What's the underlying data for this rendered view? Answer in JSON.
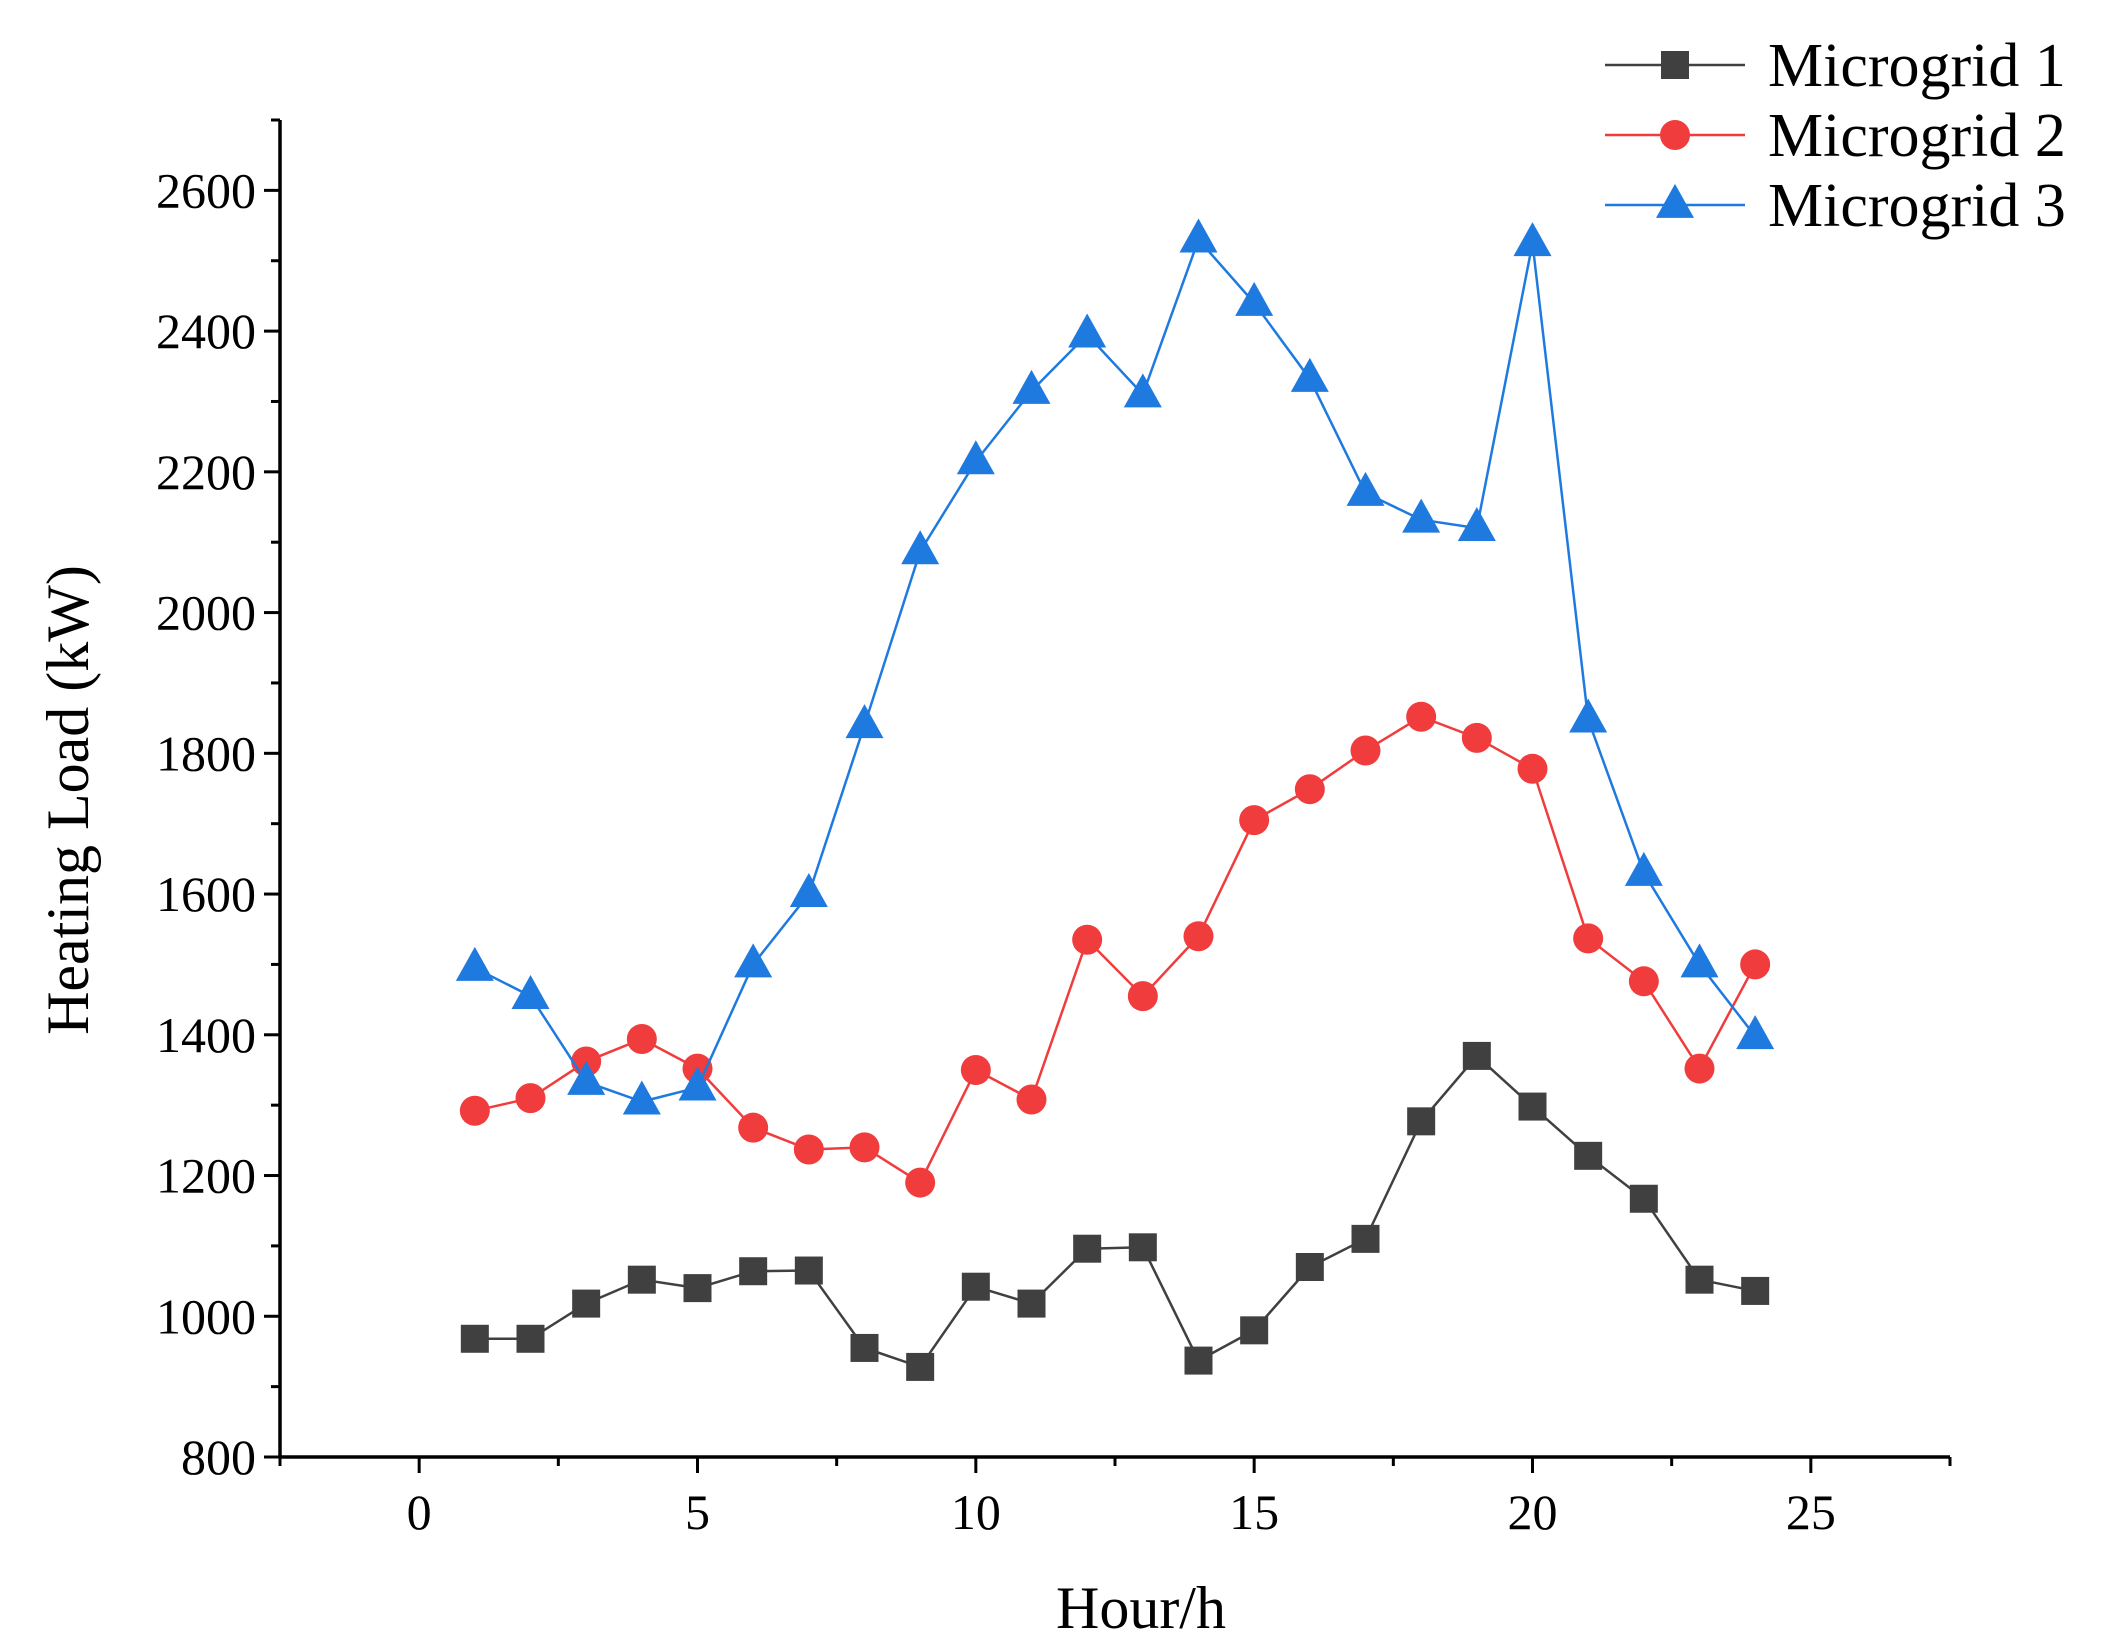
{
  "chart_data": {
    "type": "line",
    "title": "",
    "xlabel": "Hour/h",
    "ylabel": "Heating Load (kW)",
    "xlim": [
      -2.5,
      27.5
    ],
    "ylim": [
      800,
      2700
    ],
    "xticks": [
      0,
      5,
      10,
      15,
      20,
      25
    ],
    "yticks": [
      800,
      1000,
      1200,
      1400,
      1600,
      1800,
      2000,
      2200,
      2400,
      2600
    ],
    "grid": false,
    "legend_position": "top-right",
    "x": [
      1,
      2,
      3,
      4,
      5,
      6,
      7,
      8,
      9,
      10,
      11,
      12,
      13,
      14,
      15,
      16,
      17,
      18,
      19,
      20,
      21,
      22,
      23,
      24
    ],
    "series": [
      {
        "name": "Microgrid 1",
        "color": "#404040",
        "marker": "square",
        "values": [
          968,
          968,
          1018,
          1052,
          1040,
          1064,
          1065,
          955,
          928,
          1042,
          1018,
          1096,
          1098,
          937,
          980,
          1070,
          1110,
          1277,
          1370,
          1298,
          1228,
          1167,
          1052,
          1036
        ]
      },
      {
        "name": "Microgrid 2",
        "color": "#f03c3c",
        "marker": "circle",
        "values": [
          1292,
          1310,
          1362,
          1394,
          1352,
          1268,
          1237,
          1240,
          1190,
          1350,
          1308,
          1535,
          1455,
          1540,
          1705,
          1749,
          1804,
          1852,
          1822,
          1778,
          1537,
          1476,
          1352,
          1500
        ]
      },
      {
        "name": "Microgrid 3",
        "color": "#1f7ae0",
        "marker": "triangle",
        "values": [
          1495,
          1455,
          1333,
          1305,
          1325,
          1500,
          1600,
          1840,
          2087,
          2215,
          2315,
          2395,
          2310,
          2530,
          2440,
          2332,
          2170,
          2132,
          2120,
          2525,
          1848,
          1630,
          1500,
          1398
        ]
      }
    ]
  }
}
